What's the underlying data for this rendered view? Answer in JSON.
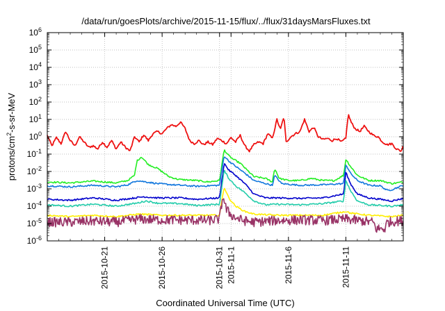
{
  "chart_data": {
    "type": "line",
    "title": "/data/run/goesPlots/archive/2015-11-15/flux/../flux/31daysMarsFluxes.txt",
    "xlabel": "Coordinated Universal Time (UTC)",
    "ylabel": {
      "main": "protons/cm",
      "sup": "2",
      "rest": "-s-sr-MeV"
    },
    "y_scale": "log",
    "ylim": [
      1e-06,
      1000000.0
    ],
    "xlim": [
      "2015-10-16",
      "2015-11-16"
    ],
    "grid": true,
    "y_ticks": [
      {
        "exp": "-6"
      },
      {
        "exp": "-5"
      },
      {
        "exp": "-4"
      },
      {
        "exp": "-3"
      },
      {
        "exp": "-2"
      },
      {
        "exp": "-1"
      },
      {
        "exp": "0"
      },
      {
        "exp": "1"
      },
      {
        "exp": "2"
      },
      {
        "exp": "3"
      },
      {
        "exp": "4"
      },
      {
        "exp": "5"
      },
      {
        "exp": "6"
      }
    ],
    "y_tick_base": "10",
    "x_ticks": [
      {
        "label": "2015-10-21",
        "day": 5
      },
      {
        "label": "2015-10-26",
        "day": 10
      },
      {
        "label": "2015-10-31",
        "day": 15
      },
      {
        "label": "2015-11-1",
        "day": 16
      },
      {
        "label": "2015-11-6",
        "day": 21
      },
      {
        "label": "2015-11-11",
        "day": 26
      }
    ],
    "series": [
      {
        "color": "#ee1111",
        "points": [
          [
            0.0,
            1.2
          ],
          [
            0.4,
            0.3
          ],
          [
            0.8,
            0.9
          ],
          [
            1.2,
            0.4
          ],
          [
            1.6,
            2.0
          ],
          [
            2.0,
            0.6
          ],
          [
            2.4,
            0.3
          ],
          [
            2.8,
            1.0
          ],
          [
            3.2,
            0.5
          ],
          [
            3.6,
            0.25
          ],
          [
            4.0,
            0.3
          ],
          [
            4.4,
            0.2
          ],
          [
            4.8,
            0.5
          ],
          [
            5.2,
            0.25
          ],
          [
            5.6,
            0.6
          ],
          [
            6.0,
            0.2
          ],
          [
            6.4,
            0.5
          ],
          [
            6.8,
            0.25
          ],
          [
            7.2,
            0.15
          ],
          [
            7.6,
            1.0
          ],
          [
            8.0,
            0.5
          ],
          [
            8.4,
            1.3
          ],
          [
            8.8,
            0.6
          ],
          [
            9.2,
            1.5
          ],
          [
            9.6,
            2.0
          ],
          [
            10.0,
            1.5
          ],
          [
            10.4,
            3.0
          ],
          [
            10.8,
            5.0
          ],
          [
            11.2,
            4.0
          ],
          [
            11.6,
            7.0
          ],
          [
            12.0,
            3.0
          ],
          [
            12.4,
            0.6
          ],
          [
            12.8,
            0.4
          ],
          [
            13.2,
            0.6
          ],
          [
            13.6,
            0.35
          ],
          [
            14.0,
            0.5
          ],
          [
            14.4,
            0.35
          ],
          [
            14.8,
            0.8
          ],
          [
            15.2,
            0.6
          ],
          [
            15.6,
            0.4
          ],
          [
            16.0,
            0.9
          ],
          [
            16.4,
            0.5
          ],
          [
            16.8,
            1.2
          ],
          [
            17.2,
            0.3
          ],
          [
            17.6,
            0.15
          ],
          [
            18.0,
            0.35
          ],
          [
            18.4,
            0.5
          ],
          [
            18.8,
            0.4
          ],
          [
            19.2,
            1.5
          ],
          [
            19.6,
            0.8
          ],
          [
            20.0,
            10.0
          ],
          [
            20.3,
            2.5
          ],
          [
            20.6,
            15.0
          ],
          [
            20.8,
            0.5
          ],
          [
            21.2,
            1.0
          ],
          [
            21.6,
            1.5
          ],
          [
            22.0,
            2.0
          ],
          [
            22.4,
            10.0
          ],
          [
            22.8,
            2.0
          ],
          [
            23.2,
            3.5
          ],
          [
            23.6,
            1.0
          ],
          [
            24.0,
            0.7
          ],
          [
            24.4,
            0.8
          ],
          [
            24.8,
            0.6
          ],
          [
            25.2,
            0.8
          ],
          [
            25.6,
            0.5
          ],
          [
            26.0,
            0.8
          ],
          [
            26.2,
            20.0
          ],
          [
            26.5,
            6.0
          ],
          [
            26.8,
            3.0
          ],
          [
            27.2,
            2.0
          ],
          [
            27.6,
            4.0
          ],
          [
            28.0,
            2.0
          ],
          [
            28.4,
            1.2
          ],
          [
            28.8,
            1.0
          ],
          [
            29.2,
            0.5
          ],
          [
            29.6,
            0.35
          ],
          [
            30.0,
            0.4
          ],
          [
            30.4,
            0.2
          ],
          [
            30.8,
            0.15
          ],
          [
            31.0,
            0.3
          ]
        ]
      },
      {
        "color": "#22ee22",
        "points": [
          [
            0.0,
            0.0025
          ],
          [
            2.0,
            0.0022
          ],
          [
            4.0,
            0.0028
          ],
          [
            6.0,
            0.0022
          ],
          [
            7.0,
            0.003
          ],
          [
            7.6,
            0.006
          ],
          [
            7.8,
            0.04
          ],
          [
            8.2,
            0.07
          ],
          [
            8.8,
            0.025
          ],
          [
            9.6,
            0.015
          ],
          [
            10.6,
            0.005
          ],
          [
            11.4,
            0.0035
          ],
          [
            13.0,
            0.003
          ],
          [
            14.0,
            0.0025
          ],
          [
            15.0,
            0.003
          ],
          [
            15.4,
            0.18
          ],
          [
            15.8,
            0.08
          ],
          [
            16.2,
            0.05
          ],
          [
            16.8,
            0.03
          ],
          [
            17.4,
            0.012
          ],
          [
            18.0,
            0.005
          ],
          [
            19.0,
            0.004
          ],
          [
            19.6,
            0.0025
          ],
          [
            19.8,
            0.015
          ],
          [
            20.2,
            0.004
          ],
          [
            21.0,
            0.003
          ],
          [
            22.0,
            0.003
          ],
          [
            23.0,
            0.004
          ],
          [
            24.0,
            0.003
          ],
          [
            25.0,
            0.003
          ],
          [
            25.8,
            0.006
          ],
          [
            26.0,
            0.05
          ],
          [
            26.4,
            0.02
          ],
          [
            27.0,
            0.006
          ],
          [
            28.0,
            0.003
          ],
          [
            29.0,
            0.003
          ],
          [
            30.0,
            0.002
          ],
          [
            31.0,
            0.0025
          ]
        ]
      },
      {
        "color": "#1177dd",
        "points": [
          [
            0.0,
            0.0015
          ],
          [
            2.0,
            0.0013
          ],
          [
            4.0,
            0.0016
          ],
          [
            6.0,
            0.0013
          ],
          [
            7.0,
            0.0017
          ],
          [
            7.8,
            0.003
          ],
          [
            8.6,
            0.0025
          ],
          [
            9.6,
            0.002
          ],
          [
            11.0,
            0.0017
          ],
          [
            13.0,
            0.0014
          ],
          [
            15.0,
            0.0016
          ],
          [
            15.4,
            0.08
          ],
          [
            15.8,
            0.04
          ],
          [
            16.4,
            0.02
          ],
          [
            17.2,
            0.008
          ],
          [
            18.0,
            0.003
          ],
          [
            19.6,
            0.0016
          ],
          [
            19.8,
            0.006
          ],
          [
            20.4,
            0.002
          ],
          [
            22.0,
            0.0016
          ],
          [
            24.0,
            0.0017
          ],
          [
            25.8,
            0.002
          ],
          [
            26.0,
            0.025
          ],
          [
            26.4,
            0.008
          ],
          [
            27.0,
            0.003
          ],
          [
            28.0,
            0.0016
          ],
          [
            29.0,
            0.0015
          ],
          [
            29.6,
            0.0008
          ],
          [
            30.0,
            0.0009
          ],
          [
            31.0,
            0.0016
          ]
        ]
      },
      {
        "color": "#0000cc",
        "points": [
          [
            0.0,
            0.00025
          ],
          [
            2.0,
            0.00022
          ],
          [
            4.0,
            0.0003
          ],
          [
            6.0,
            0.00022
          ],
          [
            7.6,
            0.0003
          ],
          [
            8.4,
            0.00035
          ],
          [
            9.6,
            0.0003
          ],
          [
            11.6,
            0.0003
          ],
          [
            13.0,
            0.00025
          ],
          [
            15.0,
            0.0003
          ],
          [
            15.4,
            0.03
          ],
          [
            15.8,
            0.012
          ],
          [
            16.4,
            0.006
          ],
          [
            17.2,
            0.002
          ],
          [
            18.0,
            0.0005
          ],
          [
            19.0,
            0.0003
          ],
          [
            20.0,
            0.0003
          ],
          [
            22.0,
            0.00028
          ],
          [
            24.0,
            0.0003
          ],
          [
            25.8,
            0.0005
          ],
          [
            26.0,
            0.009
          ],
          [
            26.4,
            0.002
          ],
          [
            27.0,
            0.0005
          ],
          [
            28.0,
            0.0003
          ],
          [
            29.0,
            0.00025
          ],
          [
            30.0,
            0.0002
          ],
          [
            31.0,
            0.00028
          ]
        ]
      },
      {
        "color": "#22ccaa",
        "points": [
          [
            0.0,
            0.00012
          ],
          [
            2.0,
            0.0001
          ],
          [
            4.0,
            0.00013
          ],
          [
            6.0,
            0.0001
          ],
          [
            7.8,
            0.00015
          ],
          [
            8.6,
            0.0002
          ],
          [
            9.6,
            0.00015
          ],
          [
            11.6,
            0.00014
          ],
          [
            13.0,
            0.00011
          ],
          [
            15.0,
            0.00013
          ],
          [
            15.4,
            0.012
          ],
          [
            15.8,
            0.004
          ],
          [
            16.4,
            0.0015
          ],
          [
            17.2,
            0.0006
          ],
          [
            18.0,
            0.0002
          ],
          [
            19.0,
            0.00012
          ],
          [
            20.0,
            0.00013
          ],
          [
            22.0,
            0.00012
          ],
          [
            24.0,
            0.00014
          ],
          [
            25.8,
            0.0002
          ],
          [
            26.0,
            0.003
          ],
          [
            26.4,
            0.0008
          ],
          [
            27.0,
            0.0002
          ],
          [
            28.0,
            0.00012
          ],
          [
            29.0,
            0.00011
          ],
          [
            30.0,
            0.0001
          ],
          [
            31.0,
            0.00012
          ]
        ]
      },
      {
        "color": "#ffee00",
        "points": [
          [
            0.0,
            3e-05
          ],
          [
            2.0,
            2.5e-05
          ],
          [
            4.0,
            3e-05
          ],
          [
            6.0,
            2.5e-05
          ],
          [
            8.0,
            3.5e-05
          ],
          [
            10.0,
            3e-05
          ],
          [
            12.0,
            3e-05
          ],
          [
            14.0,
            3e-05
          ],
          [
            15.0,
            3e-05
          ],
          [
            15.4,
            0.0013
          ],
          [
            15.8,
            0.0003
          ],
          [
            16.4,
            0.0001
          ],
          [
            17.2,
            5e-05
          ],
          [
            18.0,
            3.5e-05
          ],
          [
            20.0,
            3e-05
          ],
          [
            22.0,
            3e-05
          ],
          [
            24.0,
            3e-05
          ],
          [
            26.0,
            5e-05
          ],
          [
            26.4,
            4e-05
          ],
          [
            28.0,
            3e-05
          ],
          [
            30.0,
            2.5e-05
          ],
          [
            31.0,
            3e-05
          ]
        ]
      },
      {
        "color": "#993366",
        "noise": true,
        "points": [
          [
            0.0,
            1.2e-05
          ],
          [
            2.0,
            1.2e-05
          ],
          [
            4.0,
            1.4e-05
          ],
          [
            6.0,
            1.2e-05
          ],
          [
            8.0,
            1.8e-05
          ],
          [
            10.0,
            1.6e-05
          ],
          [
            12.0,
            1.6e-05
          ],
          [
            14.0,
            1.5e-05
          ],
          [
            15.0,
            1.8e-05
          ],
          [
            15.3,
            0.0004
          ],
          [
            15.6,
            6e-05
          ],
          [
            16.2,
            2.5e-05
          ],
          [
            17.0,
            1.5e-05
          ],
          [
            18.0,
            1.2e-05
          ],
          [
            20.0,
            1.5e-05
          ],
          [
            22.0,
            1.6e-05
          ],
          [
            24.0,
            1.5e-05
          ],
          [
            26.0,
            1.8e-05
          ],
          [
            27.0,
            1.5e-05
          ],
          [
            28.4,
            1.2e-05
          ],
          [
            28.6,
            5e-06
          ],
          [
            29.4,
            5e-06
          ],
          [
            29.6,
            1.2e-05
          ],
          [
            31.0,
            1.5e-05
          ]
        ]
      }
    ]
  }
}
